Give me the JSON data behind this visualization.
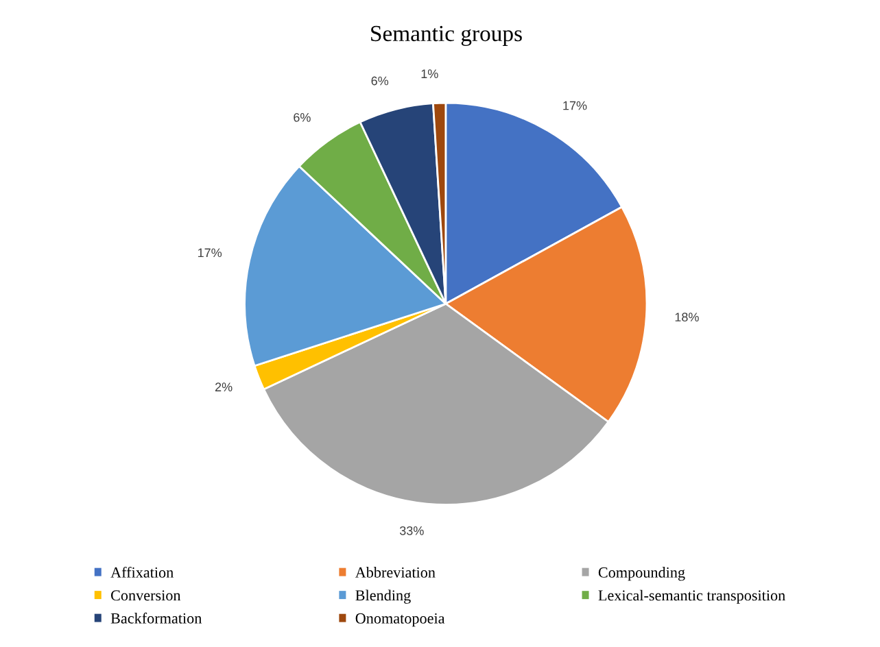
{
  "chart_data": {
    "type": "pie",
    "title": "Semantic groups",
    "categories": [
      "Affixation",
      "Abbreviation",
      "Compounding",
      "Conversion",
      "Blending",
      "Lexical-semantic transposition",
      "Backformation",
      "Onomatopoeia"
    ],
    "values": [
      17,
      18,
      33,
      2,
      17,
      6,
      6,
      1
    ],
    "value_labels": [
      "17%",
      "18%",
      "33%",
      "2%",
      "17%",
      "6%",
      "6%",
      "1%"
    ],
    "colors": [
      "#4472c4",
      "#ed7d31",
      "#a5a5a5",
      "#ffc000",
      "#5b9bd5",
      "#70ad47",
      "#264478",
      "#9e480e"
    ],
    "legend": "bottom"
  }
}
